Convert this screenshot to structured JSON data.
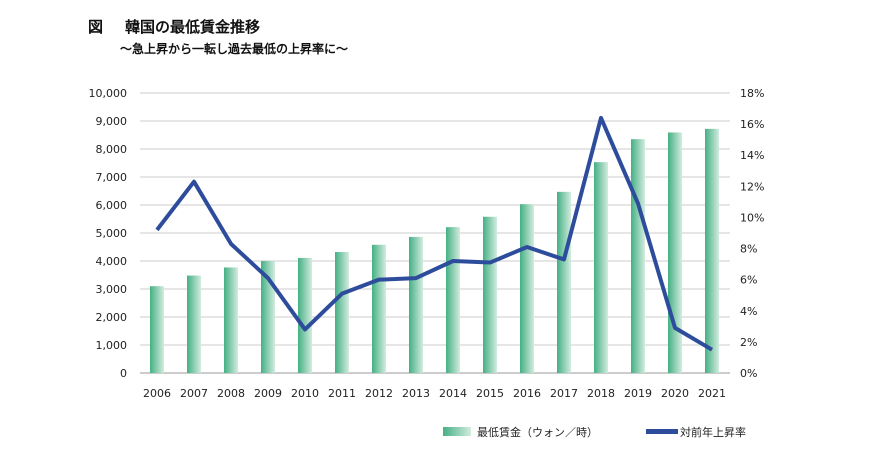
{
  "title_prefix": "図",
  "title": "韓国の最低賃金推移",
  "subtitle": "～急上昇から一転し過去最低の上昇率に～",
  "chart_data": {
    "type": "bar+line",
    "categories": [
      "2006",
      "2007",
      "2008",
      "2009",
      "2010",
      "2011",
      "2012",
      "2013",
      "2014",
      "2015",
      "2016",
      "2017",
      "2018",
      "2019",
      "2020",
      "2021"
    ],
    "series": [
      {
        "name": "最低賃金（ウォン／時）",
        "type": "bar",
        "axis": "left",
        "color": "#4fb58a",
        "values": [
          3100,
          3480,
          3770,
          4000,
          4110,
          4320,
          4580,
          4860,
          5210,
          5580,
          6030,
          6470,
          7530,
          8350,
          8590,
          8720
        ]
      },
      {
        "name": "対前年上昇率",
        "type": "line",
        "axis": "right",
        "color": "#2e4c9c",
        "values": [
          9.2,
          12.3,
          8.3,
          6.1,
          2.8,
          5.1,
          6.0,
          6.1,
          7.2,
          7.1,
          8.1,
          7.3,
          16.4,
          10.9,
          2.9,
          1.5
        ]
      }
    ],
    "left_axis": {
      "ylim": [
        0,
        10000
      ],
      "ticks": [
        "0",
        "1,000",
        "2,000",
        "3,000",
        "4,000",
        "5,000",
        "6,000",
        "7,000",
        "8,000",
        "9,000",
        "10,000"
      ]
    },
    "right_axis": {
      "ylim": [
        0,
        18
      ],
      "ticks": [
        "0%",
        "2%",
        "4%",
        "6%",
        "8%",
        "10%",
        "12%",
        "14%",
        "16%",
        "18%"
      ]
    },
    "grid": true,
    "legend_position": "bottom-right"
  }
}
